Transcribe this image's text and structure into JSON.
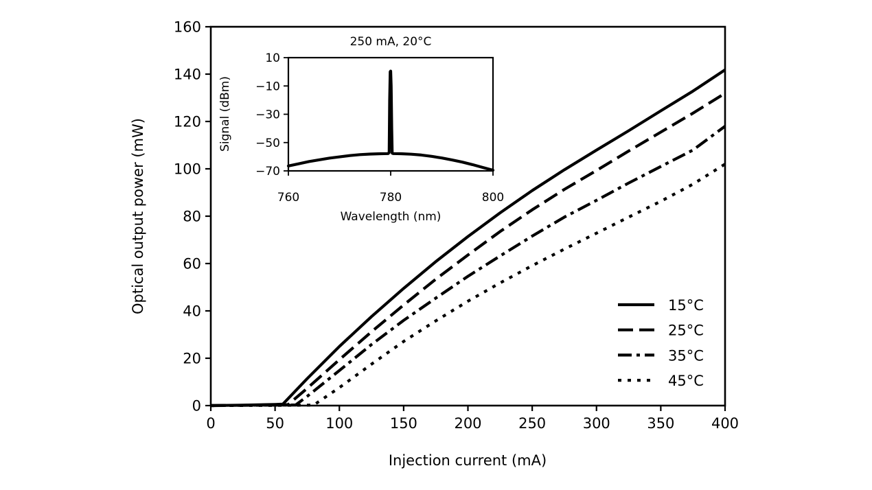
{
  "chart_data": [
    {
      "type": "line",
      "xlabel": "Injection current (mA)",
      "ylabel": "Optical output power (mW)",
      "xlim": [
        0,
        400
      ],
      "ylim": [
        0,
        160
      ],
      "xticks": [
        "0",
        "50",
        "100",
        "150",
        "200",
        "250",
        "300",
        "350",
        "400"
      ],
      "yticks": [
        "0",
        "20",
        "40",
        "60",
        "80",
        "100",
        "120",
        "140",
        "160"
      ],
      "legend_position": "lower-right",
      "series": [
        {
          "name": "15°C",
          "style": "solid",
          "x": [
            0,
            25,
            50,
            56,
            75,
            100,
            125,
            150,
            175,
            200,
            225,
            250,
            275,
            300,
            325,
            350,
            375,
            400
          ],
          "y": [
            0.0,
            0.2,
            0.5,
            0.6,
            11.4,
            25.0,
            37.6,
            49.5,
            60.8,
            71.4,
            81.4,
            90.8,
            99.6,
            107.9,
            116.1,
            124.5,
            132.8,
            141.8
          ]
        },
        {
          "name": "25°C",
          "style": "dashed",
          "x": [
            0,
            50,
            60,
            75,
            100,
            125,
            150,
            175,
            200,
            225,
            250,
            275,
            300,
            325,
            350,
            375,
            400
          ],
          "y": [
            0.0,
            0.3,
            0.4,
            7.3,
            19.4,
            31.2,
            42.5,
            53.4,
            63.6,
            73.5,
            82.7,
            91.3,
            99.3,
            107.5,
            115.5,
            123.5,
            131.9
          ]
        },
        {
          "name": "35°C",
          "style": "dash-dot",
          "x": [
            0,
            50,
            66,
            75,
            100,
            125,
            150,
            175,
            200,
            225,
            250,
            275,
            300,
            325,
            350,
            375,
            400
          ],
          "y": [
            0.0,
            0.2,
            0.3,
            3.9,
            14.8,
            25.8,
            36.0,
            45.4,
            54.6,
            63.2,
            71.6,
            79.6,
            86.7,
            94.0,
            101.0,
            107.9,
            118.0
          ]
        },
        {
          "name": "45°C",
          "style": "dotted",
          "x": [
            0,
            50,
            80,
            100,
            125,
            150,
            175,
            200,
            225,
            250,
            275,
            300,
            325,
            350,
            375,
            400
          ],
          "y": [
            0.0,
            0.1,
            0.2,
            7.6,
            17.5,
            27.1,
            35.8,
            44.1,
            51.8,
            59.1,
            66.1,
            72.8,
            79.6,
            86.3,
            93.5,
            102.0
          ]
        }
      ]
    },
    {
      "type": "line",
      "title": "250 mA, 20°C",
      "xlabel": "Wavelength (nm)",
      "ylabel": "Signal (dBm)",
      "xlim": [
        760,
        800
      ],
      "ylim": [
        -70,
        10
      ],
      "xticks": [
        "760",
        "780",
        "800"
      ],
      "yticks": [
        "10",
        "−10",
        "−30",
        "−50",
        "−70"
      ],
      "series": [
        {
          "name": "spectrum",
          "style": "solid",
          "x": [
            760,
            762,
            764,
            766,
            768,
            770,
            772,
            774,
            776,
            778,
            779.5,
            779.7,
            779.8,
            779.9,
            780.0,
            780.1,
            780.2,
            780.3,
            780.5,
            782,
            784,
            786,
            788,
            790,
            792,
            794,
            796,
            798,
            800
          ],
          "y": [
            -66.5,
            -65.0,
            -63.4,
            -62.2,
            -61.0,
            -60.1,
            -59.2,
            -58.5,
            -58.1,
            -57.9,
            -57.8,
            -57.0,
            -20.0,
            0.0,
            0.5,
            -10.0,
            -40.0,
            -57.5,
            -57.8,
            -57.9,
            -58.2,
            -58.8,
            -59.7,
            -60.9,
            -62.3,
            -63.8,
            -65.6,
            -67.6,
            -69.5
          ]
        }
      ]
    }
  ]
}
